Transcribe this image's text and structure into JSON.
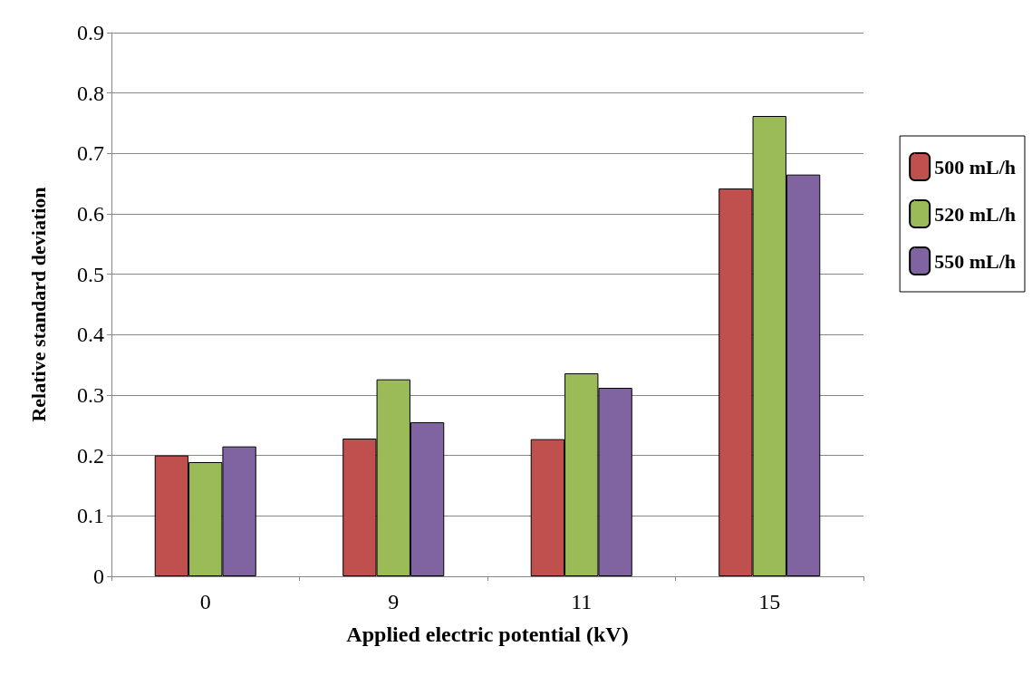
{
  "chart_data": {
    "type": "bar",
    "xlabel": "Applied electric potential (kV)",
    "ylabel": "Relative standard deviation",
    "categories": [
      "0",
      "9",
      "11",
      "15"
    ],
    "series": [
      {
        "name": "500 mL/h",
        "color": "#c0504d",
        "values": [
          0.2,
          0.228,
          0.227,
          0.642
        ]
      },
      {
        "name": "520 mL/h",
        "color": "#9bbb59",
        "values": [
          0.189,
          0.326,
          0.336,
          0.762
        ]
      },
      {
        "name": "550 mL/h",
        "color": "#8064a2",
        "values": [
          0.215,
          0.255,
          0.312,
          0.665
        ]
      }
    ],
    "ylim": [
      0,
      0.9
    ],
    "yticks": [
      0,
      0.1,
      0.2,
      0.3,
      0.4,
      0.5,
      0.6,
      0.7,
      0.8,
      0.9
    ],
    "grid": "y",
    "legend": "right"
  }
}
